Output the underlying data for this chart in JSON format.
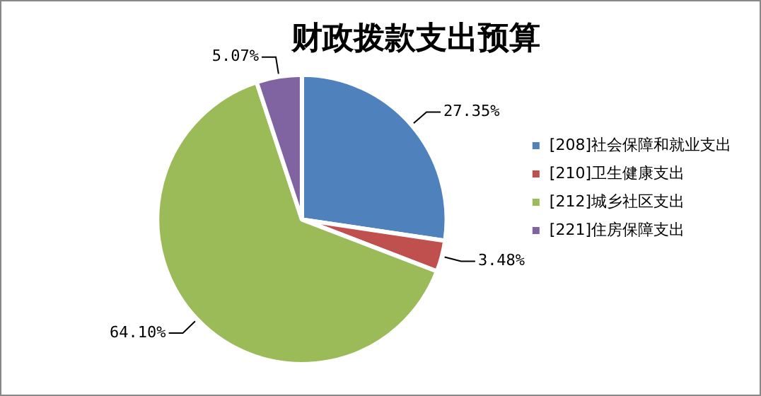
{
  "chart_data": {
    "type": "pie",
    "title": "财政拨款支出预算",
    "categories": [
      "[208]社会保障和就业支出",
      "[210]卫生健康支出",
      "[212]城乡社区支出",
      "[221]住房保障支出"
    ],
    "values": [
      27.35,
      3.48,
      64.1,
      5.07
    ],
    "colors": [
      "#4f81bd",
      "#c0504d",
      "#9bbb59",
      "#8064a2"
    ],
    "value_labels": [
      "27.35%",
      "3.48%",
      "64.10%",
      "5.07%"
    ],
    "legend": "right"
  }
}
